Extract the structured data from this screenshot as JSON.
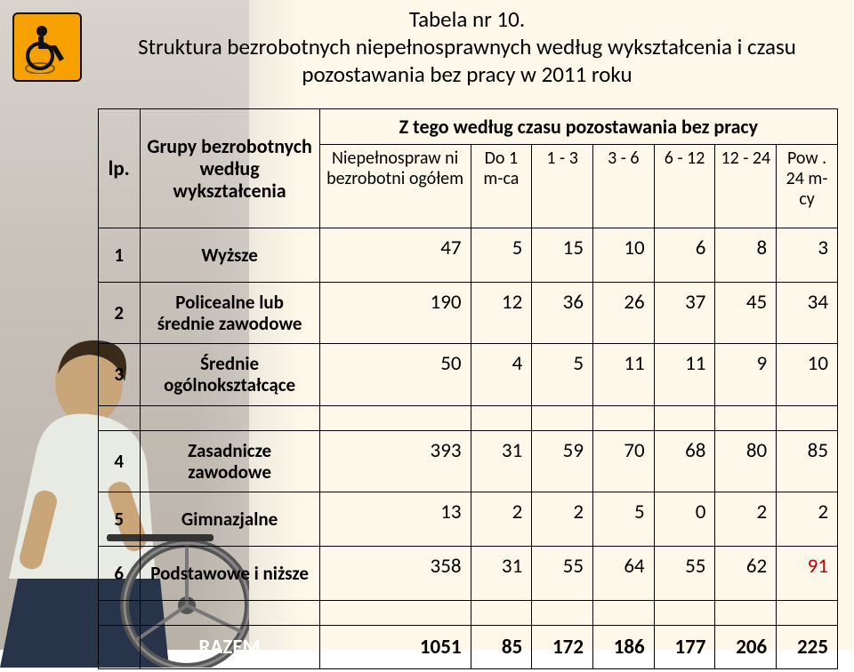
{
  "badge": {
    "bg": "#f7a100",
    "border": "#111111"
  },
  "title": {
    "line1": "Tabela nr 10.",
    "line2": "Struktura bezrobotnych niepełnosprawnych według wykształcenia i czasu pozostawania bez pracy w 2011 roku"
  },
  "headers": {
    "lp": "lp.",
    "group": "Grupy bezrobotnych według wykształcenia",
    "span": "Z tego według czasu pozostawania bez pracy",
    "sub": [
      "Niepełnospraw\nni bezrobotni ogółem",
      "Do 1 m-ca",
      "1 - 3",
      "3 - 6",
      "6 - 12",
      "12 - 24",
      "Pow\n. 24 m-\ncy"
    ]
  },
  "rows": [
    {
      "n": "1",
      "label": "Wyższe",
      "vals": [
        "47",
        "5",
        "15",
        "10",
        "6",
        "8",
        "3"
      ]
    },
    {
      "n": "2",
      "label": "Policealne lub średnie zawodowe",
      "vals": [
        "190",
        "12",
        "36",
        "26",
        "37",
        "45",
        "34"
      ]
    },
    {
      "n": "3",
      "label": "Średnie ogólnokształcące",
      "vals": [
        "50",
        "4",
        "5",
        "11",
        "11",
        "9",
        "10"
      ]
    },
    {
      "n": "4",
      "label": "Zasadnicze zawodowe",
      "vals": [
        "393",
        "31",
        "59",
        "70",
        "68",
        "80",
        "85"
      ]
    },
    {
      "n": "5",
      "label": "Gimnazjalne",
      "vals": [
        "13",
        "2",
        "2",
        "5",
        "0",
        "2",
        "2"
      ]
    },
    {
      "n": "6",
      "label": "Podstawowe i niższe",
      "vals": [
        "358",
        "31",
        "55",
        "64",
        "55",
        "62",
        "91"
      ],
      "redIdx": 6
    }
  ],
  "total": {
    "label": "RAZEM",
    "vals": [
      "1051",
      "85",
      "172",
      "186",
      "177",
      "206",
      "225"
    ]
  },
  "colors": {
    "page_right_bg": "#fdf8e9",
    "page_left_bg": "#d8d3cd",
    "text": "#000000",
    "red": "#c00000",
    "razem_text": "#ffffff"
  }
}
